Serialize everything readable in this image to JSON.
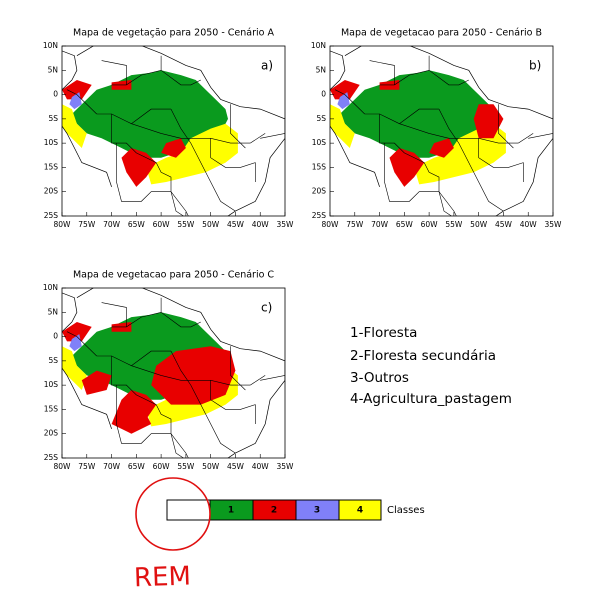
{
  "panels": [
    {
      "title": "Mapa de vegetação para 2050 - Cenário A",
      "label": "a)"
    },
    {
      "title": "Mapa de vegetacao para 2050 - Cenário B",
      "label": "b)"
    },
    {
      "title": "Mapa de vegetacao para 2050 - Cenário C",
      "label": "c)"
    }
  ],
  "lon_ticks": [
    "80W",
    "75W",
    "70W",
    "65W",
    "60W",
    "55W",
    "50W",
    "45W",
    "40W",
    "35W"
  ],
  "lat_ticks": [
    "10N",
    "5N",
    "0",
    "5S",
    "10S",
    "15S",
    "20S",
    "25S"
  ],
  "legend": [
    "1-Floresta",
    "2-Floresta secundária",
    "3-Outros",
    "4-Agricultura_pastagem"
  ],
  "colorbar": {
    "labels": [
      "1",
      "2",
      "3",
      "4"
    ],
    "title": "Classes"
  },
  "annotation": "REM"
}
